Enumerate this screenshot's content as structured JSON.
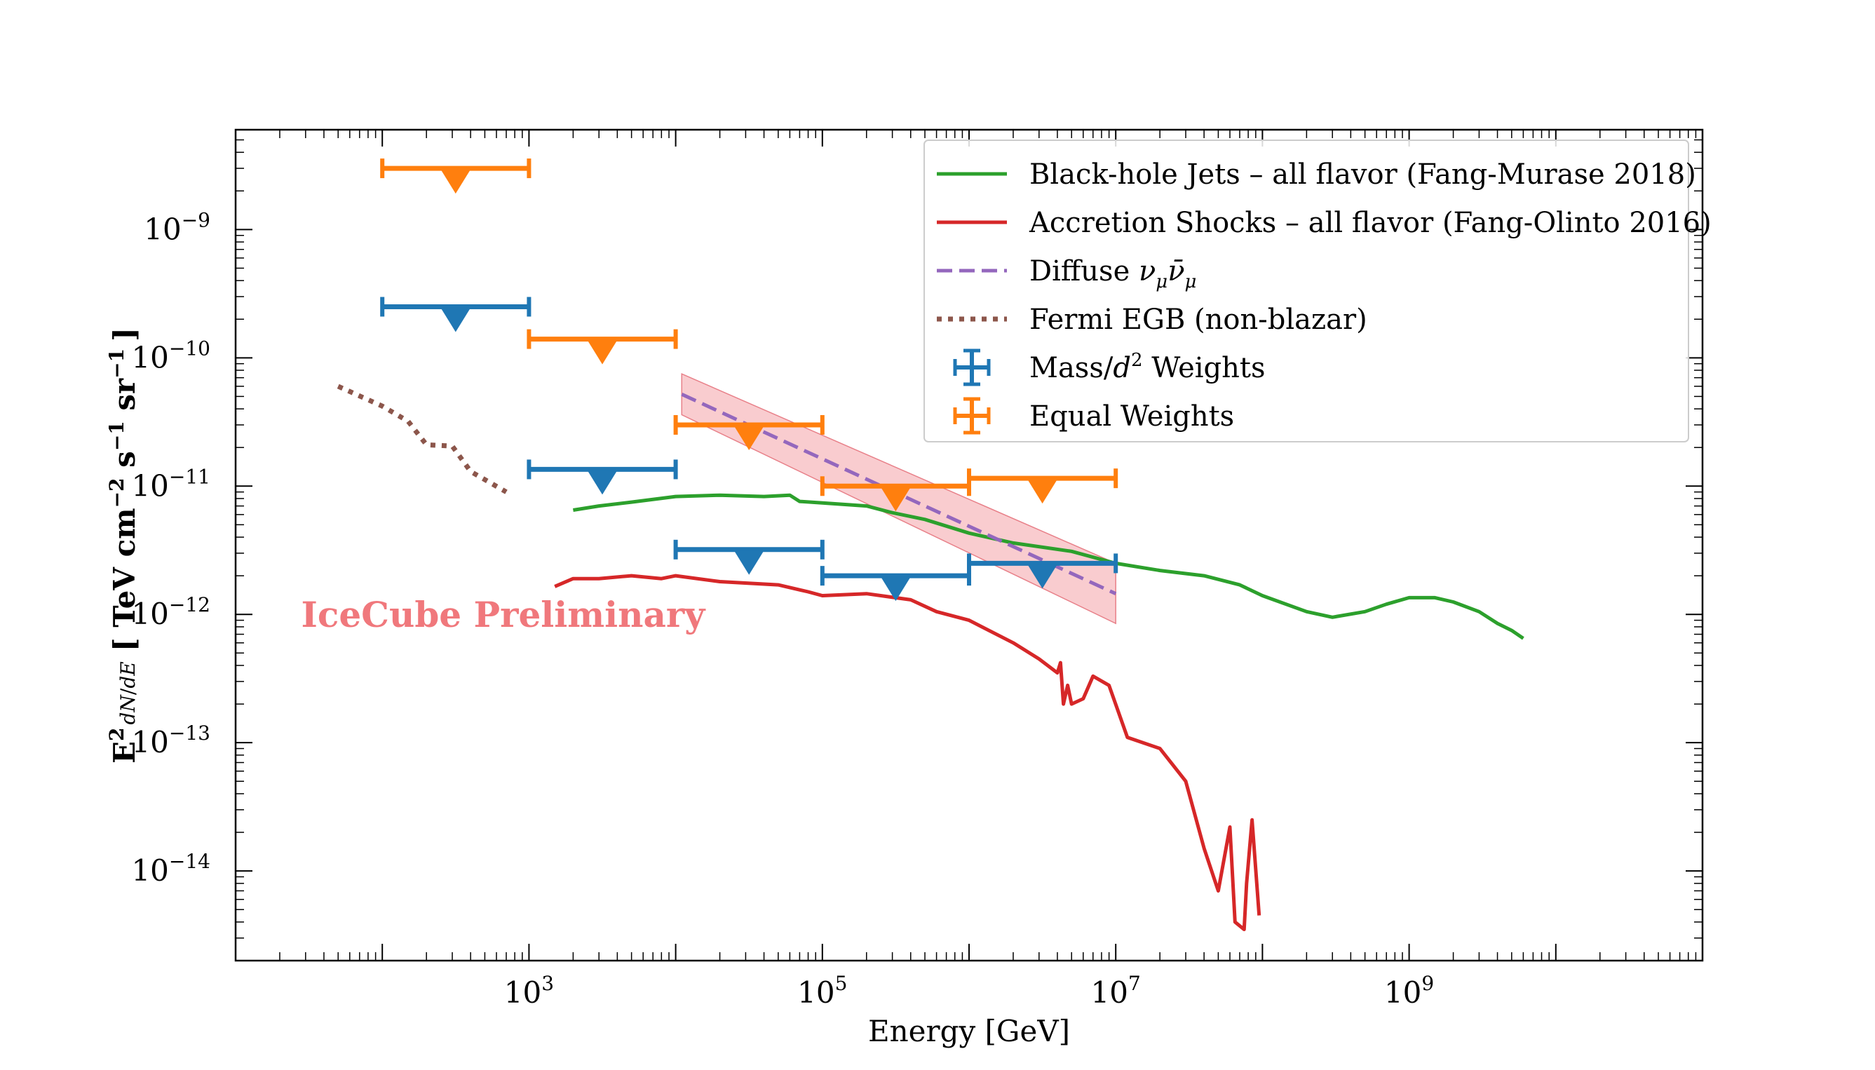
{
  "chart_data": {
    "type": "line",
    "scale": {
      "x": "log",
      "y": "log"
    },
    "xlim": [
      10,
      100000000000
    ],
    "ylim": [
      2e-15,
      6e-09
    ],
    "xlabel": "Energy [GeV]",
    "ylabel": {
      "prefix": "E",
      "sup": "2",
      "frac_num": "dN",
      "frac_den": "dE",
      "unit": "[ TeV cm",
      "unit_exp1": "−2",
      "unit_mid": " s",
      "unit_exp2": "−1",
      "unit_end": " sr",
      "unit_exp3": "−1",
      "close": "]"
    },
    "x_ticks": [
      {
        "value": 1000,
        "base": "10",
        "exp": "3"
      },
      {
        "value": 100000,
        "base": "10",
        "exp": "5"
      },
      {
        "value": 10000000,
        "base": "10",
        "exp": "7"
      },
      {
        "value": 1000000000,
        "base": "10",
        "exp": "9"
      }
    ],
    "y_ticks": [
      {
        "value": 1e-09,
        "base": "10",
        "exp": "−9"
      },
      {
        "value": 1e-10,
        "base": "10",
        "exp": "−10"
      },
      {
        "value": 1e-11,
        "base": "10",
        "exp": "−11"
      },
      {
        "value": 1e-12,
        "base": "10",
        "exp": "−12"
      },
      {
        "value": 1e-13,
        "base": "10",
        "exp": "−13"
      },
      {
        "value": 1e-14,
        "base": "10",
        "exp": "−14"
      }
    ],
    "annotation": {
      "text": "IceCube Preliminary",
      "color": "#f0787c",
      "x": 28,
      "y": 1e-12
    },
    "colors": {
      "jets": "#2ca02c",
      "shocks": "#d62728",
      "diffuse": "#9467bd",
      "fermi": "#8c564b",
      "mass": "#1f77b4",
      "equal": "#ff7f0e",
      "band": "#f4a3a8"
    },
    "series": [
      {
        "name": "Black-hole Jets – all flavor (Fang-Murase 2018)",
        "key": "jets",
        "style": "solid",
        "points": [
          [
            2000,
            6.5e-12
          ],
          [
            3000,
            7e-12
          ],
          [
            5000,
            7.5e-12
          ],
          [
            10000,
            8.3e-12
          ],
          [
            20000,
            8.5e-12
          ],
          [
            40000,
            8.3e-12
          ],
          [
            60000,
            8.5e-12
          ],
          [
            70000,
            7.6e-12
          ],
          [
            100000,
            7.4e-12
          ],
          [
            200000,
            7e-12
          ],
          [
            300000,
            6.2e-12
          ],
          [
            500000,
            5.5e-12
          ],
          [
            1000000,
            4.3e-12
          ],
          [
            2000000,
            3.6e-12
          ],
          [
            5000000,
            3.1e-12
          ],
          [
            10000000,
            2.5e-12
          ],
          [
            20000000,
            2.2e-12
          ],
          [
            40000000,
            2e-12
          ],
          [
            70000000,
            1.7e-12
          ],
          [
            100000000,
            1.4e-12
          ],
          [
            200000000,
            1.05e-12
          ],
          [
            300000000,
            9.5e-13
          ],
          [
            500000000,
            1.05e-12
          ],
          [
            700000000,
            1.2e-12
          ],
          [
            1000000000,
            1.35e-12
          ],
          [
            1500000000,
            1.35e-12
          ],
          [
            2000000000,
            1.25e-12
          ],
          [
            3000000000,
            1.05e-12
          ],
          [
            4000000000,
            8.5e-13
          ],
          [
            5000000000,
            7.5e-13
          ],
          [
            6000000000,
            6.5e-13
          ]
        ]
      },
      {
        "name": "Accretion Shocks – all flavor (Fang-Olinto 2016)",
        "key": "shocks",
        "style": "solid",
        "points": [
          [
            1500,
            1.65e-12
          ],
          [
            2000,
            1.9e-12
          ],
          [
            3000,
            1.9e-12
          ],
          [
            5000,
            2e-12
          ],
          [
            8000,
            1.9e-12
          ],
          [
            10000,
            2e-12
          ],
          [
            20000,
            1.8e-12
          ],
          [
            50000,
            1.7e-12
          ],
          [
            80000,
            1.5e-12
          ],
          [
            100000,
            1.4e-12
          ],
          [
            200000,
            1.45e-12
          ],
          [
            400000,
            1.3e-12
          ],
          [
            600000,
            1.05e-12
          ],
          [
            1000000,
            9e-13
          ],
          [
            2000000,
            6e-13
          ],
          [
            3000000,
            4.5e-13
          ],
          [
            4000000,
            3.5e-13
          ],
          [
            4200000,
            4.2e-13
          ],
          [
            4400000,
            2e-13
          ],
          [
            4700000,
            2.8e-13
          ],
          [
            5000000,
            2e-13
          ],
          [
            6000000,
            2.2e-13
          ],
          [
            7000000,
            3.3e-13
          ],
          [
            9000000,
            2.8e-13
          ],
          [
            12000000,
            1.1e-13
          ],
          [
            20000000,
            9e-14
          ],
          [
            30000000,
            5e-14
          ],
          [
            40000000,
            1.5e-14
          ],
          [
            50000000,
            7e-15
          ],
          [
            60000000,
            2.2e-14
          ],
          [
            65000000,
            4e-15
          ],
          [
            75000000,
            3.5e-15
          ],
          [
            78000000,
            8e-15
          ],
          [
            85000000,
            2.5e-14
          ],
          [
            95000000,
            4.5e-15
          ]
        ]
      },
      {
        "name": "Diffuse",
        "label_math": "ν_μ ν̄_μ",
        "key": "diffuse",
        "style": "dashed",
        "points": [
          [
            11000,
            5.2e-11
          ],
          [
            10000000,
            1.45e-12
          ]
        ],
        "band": {
          "x": [
            11000,
            10000000
          ],
          "upper": [
            7.5e-11,
            2.5e-12
          ],
          "lower": [
            3.6e-11,
            8.5e-13
          ]
        }
      },
      {
        "name": "Fermi EGB (non-blazar)",
        "key": "fermi",
        "style": "dotted",
        "points": [
          [
            50,
            6e-11
          ],
          [
            100,
            4.2e-11
          ],
          [
            150,
            3.2e-11
          ],
          [
            200,
            2.1e-11
          ],
          [
            300,
            2.05e-11
          ],
          [
            400,
            1.3e-11
          ],
          [
            700,
            9e-12
          ]
        ]
      }
    ],
    "upper_limits": [
      {
        "name": "Mass/d² Weights",
        "key": "mass",
        "bins": [
          {
            "xmin": 100,
            "xmax": 1000,
            "value": 2.5e-10
          },
          {
            "xmin": 1000,
            "xmax": 10000,
            "value": 1.35e-11
          },
          {
            "xmin": 10000,
            "xmax": 100000,
            "value": 3.2e-12
          },
          {
            "xmin": 100000,
            "xmax": 1000000,
            "value": 2e-12
          },
          {
            "xmin": 1000000,
            "xmax": 10000000,
            "value": 2.5e-12
          }
        ]
      },
      {
        "name": "Equal Weights",
        "key": "equal",
        "bins": [
          {
            "xmin": 100,
            "xmax": 1000,
            "value": 3e-09
          },
          {
            "xmin": 1000,
            "xmax": 10000,
            "value": 1.4e-10
          },
          {
            "xmin": 10000,
            "xmax": 100000,
            "value": 3e-11
          },
          {
            "xmin": 100000,
            "xmax": 1000000,
            "value": 1e-11
          },
          {
            "xmin": 1000000,
            "xmax": 10000000,
            "value": 1.15e-11
          }
        ]
      }
    ],
    "legend": {
      "position": "top-right",
      "entries": [
        {
          "key": "jets",
          "kind": "solid",
          "label": "Black-hole Jets – all flavor (Fang-Murase 2018)"
        },
        {
          "key": "shocks",
          "kind": "solid",
          "label": "Accretion Shocks – all flavor (Fang-Olinto 2016)"
        },
        {
          "key": "diffuse",
          "kind": "dashed",
          "label": "Diffuse ",
          "math_nu": "ν",
          "math_sub": "μ",
          "math_nubar": "ν̄",
          "math_sub2": "μ"
        },
        {
          "key": "fermi",
          "kind": "dotted",
          "label": "Fermi EGB (non-blazar)"
        },
        {
          "key": "mass",
          "kind": "errorbar",
          "label": "Mass/",
          "math_d": "d",
          "math_sup": "2",
          "label_end": " Weights"
        },
        {
          "key": "equal",
          "kind": "errorbar",
          "label": "Equal Weights"
        }
      ]
    }
  }
}
